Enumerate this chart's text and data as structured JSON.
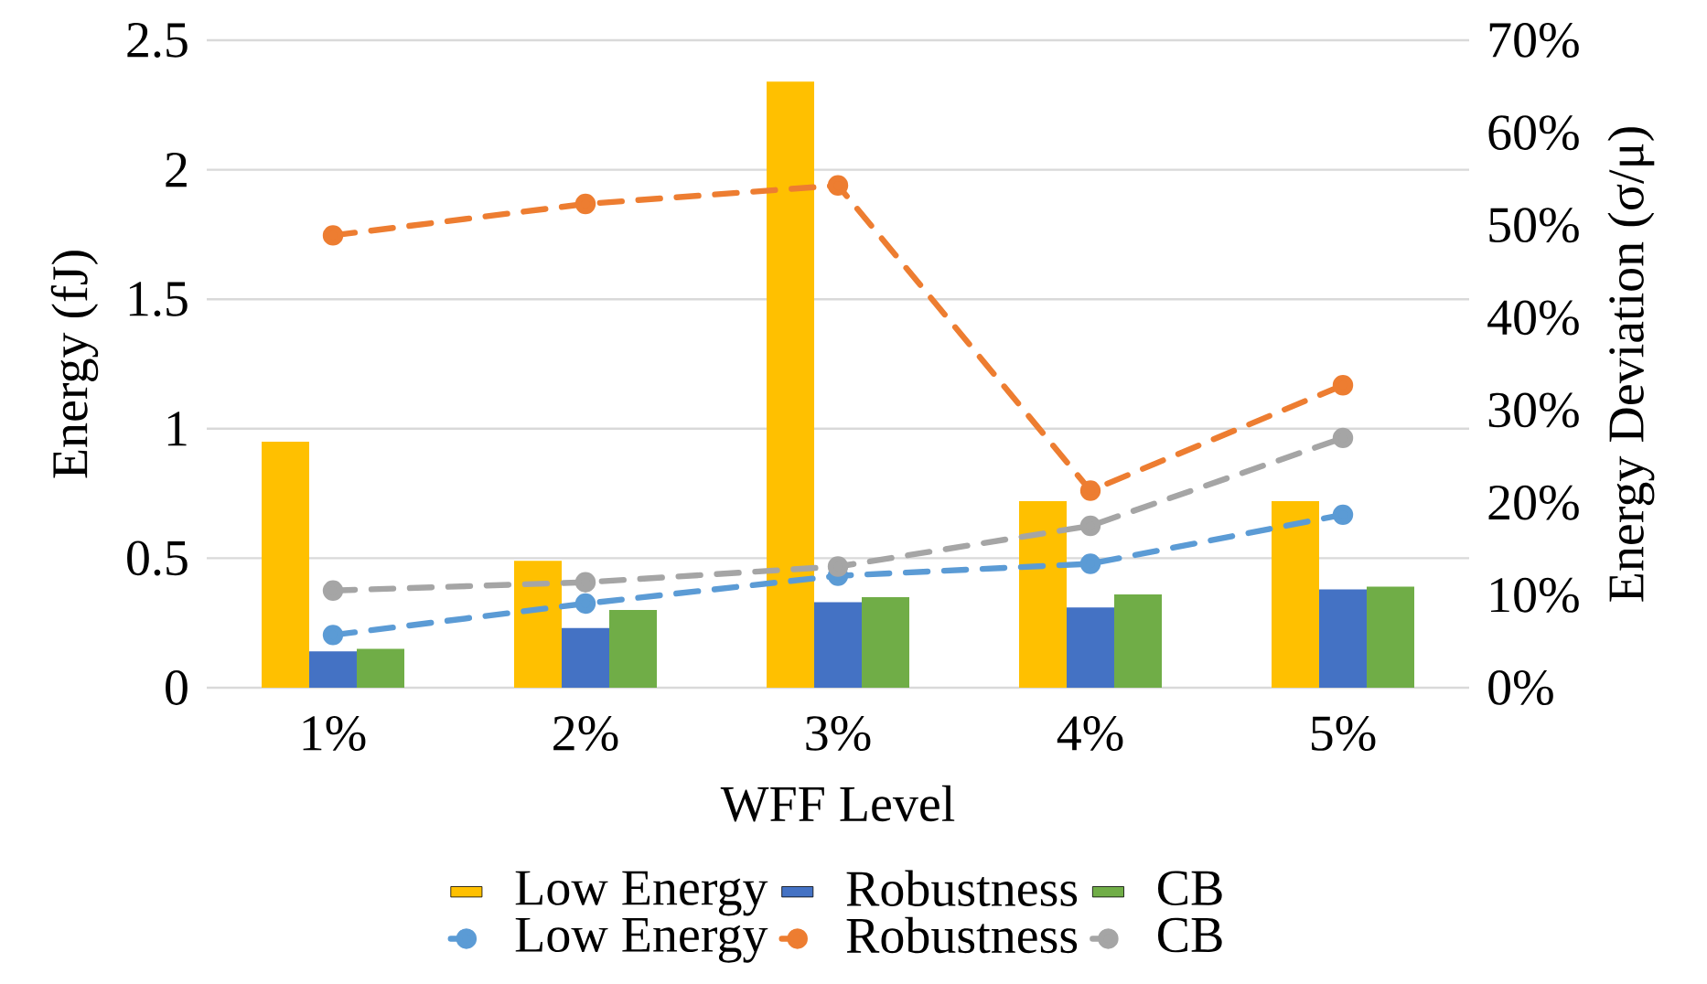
{
  "chart_data": {
    "type": "bar",
    "xlabel": "WFF Level",
    "ylabel": "Energy (fJ)",
    "y2label": "Energy Deviation (σ/μ)",
    "categories": [
      "1%",
      "2%",
      "3%",
      "4%",
      "5%"
    ],
    "series": [
      {
        "name": "Low Energy",
        "type": "bar",
        "color": "#ffc000",
        "values": [
          0.95,
          0.49,
          2.34,
          0.72,
          0.72
        ]
      },
      {
        "name": "Robustness",
        "type": "bar",
        "color": "#4472c4",
        "values": [
          0.14,
          0.23,
          0.33,
          0.31,
          0.38
        ]
      },
      {
        "name": "CB",
        "type": "bar",
        "color": "#70ad47",
        "values": [
          0.15,
          0.3,
          0.35,
          0.36,
          0.39
        ]
      },
      {
        "name": "Low Energy",
        "type": "line",
        "axis": "y2",
        "color": "#5b9bd5",
        "marker": "circle",
        "line_style": "dashed",
        "values": [
          5.7,
          9.1,
          12.1,
          13.4,
          18.7
        ]
      },
      {
        "name": "Robustness",
        "type": "line",
        "axis": "y2",
        "color": "#ed7d31",
        "marker": "circle",
        "line_style": "dashed",
        "values": [
          48.9,
          52.3,
          54.3,
          21.3,
          32.7
        ]
      },
      {
        "name": "CB",
        "type": "line",
        "axis": "y2",
        "color": "#a5a5a5",
        "marker": "circle",
        "line_style": "dashed",
        "values": [
          10.5,
          11.4,
          13.1,
          17.5,
          27.0
        ]
      }
    ],
    "ylim": [
      0,
      2.5
    ],
    "yticks": [
      0,
      0.5,
      1,
      1.5,
      2,
      2.5
    ],
    "y2lim": [
      0,
      70
    ],
    "y2ticks": [
      {
        "value": 0,
        "label": "0%"
      },
      {
        "value": 10,
        "label": "10%"
      },
      {
        "value": 20,
        "label": "20%"
      },
      {
        "value": 30,
        "label": "30%"
      },
      {
        "value": 40,
        "label": "40%"
      },
      {
        "value": 50,
        "label": "50%"
      },
      {
        "value": 60,
        "label": "60%"
      },
      {
        "value": 70,
        "label": "70%"
      }
    ],
    "grid": "y",
    "legend": "bottom"
  }
}
